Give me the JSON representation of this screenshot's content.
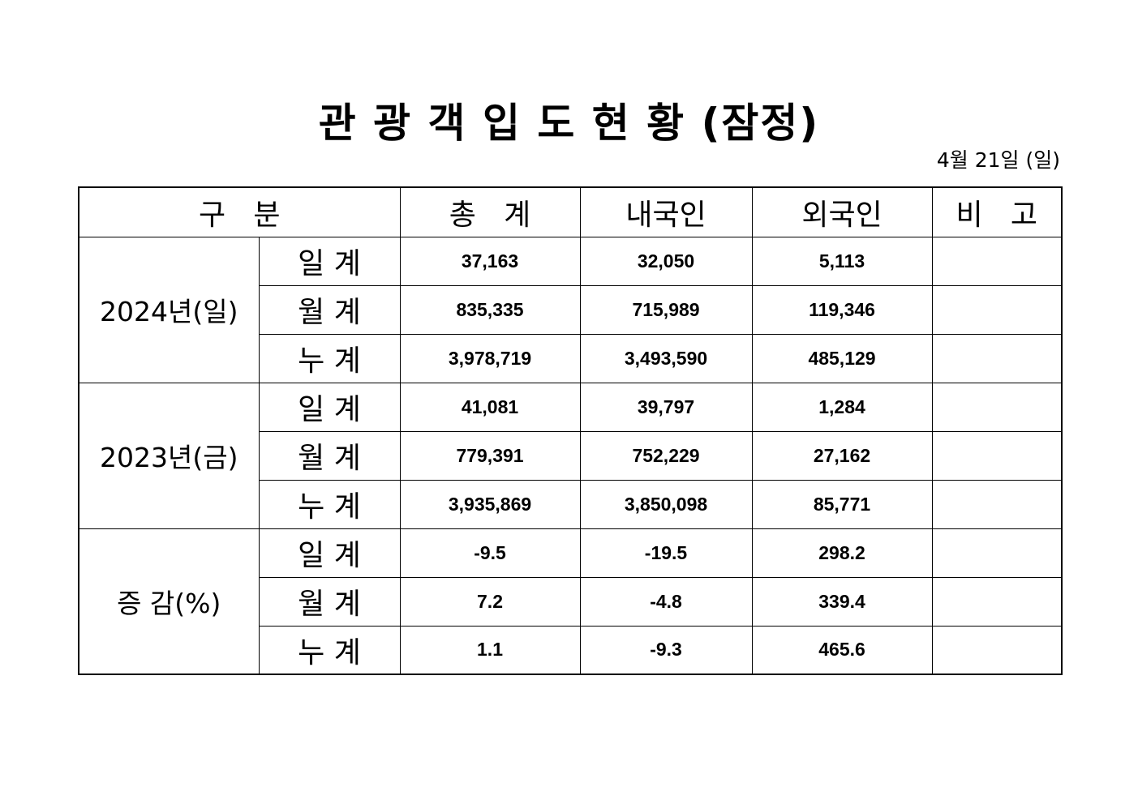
{
  "title": "관 광 객 입 도 현 황 (잠정)",
  "date": "4월 21일 (일)",
  "header": {
    "category": "구   분",
    "total": "총   계",
    "domestic": "내국인",
    "foreign": "외국인",
    "remarks": "비   고"
  },
  "groups": [
    {
      "label": "2024년(일)",
      "rows": [
        {
          "sub": "일 계",
          "total": "37,163",
          "domestic": "32,050",
          "foreign": "5,113",
          "remarks": ""
        },
        {
          "sub": "월 계",
          "total": "835,335",
          "domestic": "715,989",
          "foreign": "119,346",
          "remarks": ""
        },
        {
          "sub": "누 계",
          "total": "3,978,719",
          "domestic": "3,493,590",
          "foreign": "485,129",
          "remarks": ""
        }
      ]
    },
    {
      "label": "2023년(금)",
      "rows": [
        {
          "sub": "일 계",
          "total": "41,081",
          "domestic": "39,797",
          "foreign": "1,284",
          "remarks": ""
        },
        {
          "sub": "월 계",
          "total": "779,391",
          "domestic": "752,229",
          "foreign": "27,162",
          "remarks": ""
        },
        {
          "sub": "누 계",
          "total": "3,935,869",
          "domestic": "3,850,098",
          "foreign": "85,771",
          "remarks": ""
        }
      ]
    },
    {
      "label": "증 감(%)",
      "rows": [
        {
          "sub": "일 계",
          "total": "-9.5",
          "domestic": "-19.5",
          "foreign": "298.2",
          "remarks": ""
        },
        {
          "sub": "월 계",
          "total": "7.2",
          "domestic": "-4.8",
          "foreign": "339.4",
          "remarks": ""
        },
        {
          "sub": "누 계",
          "total": "1.1",
          "domestic": "-9.3",
          "foreign": "465.6",
          "remarks": ""
        }
      ]
    }
  ]
}
